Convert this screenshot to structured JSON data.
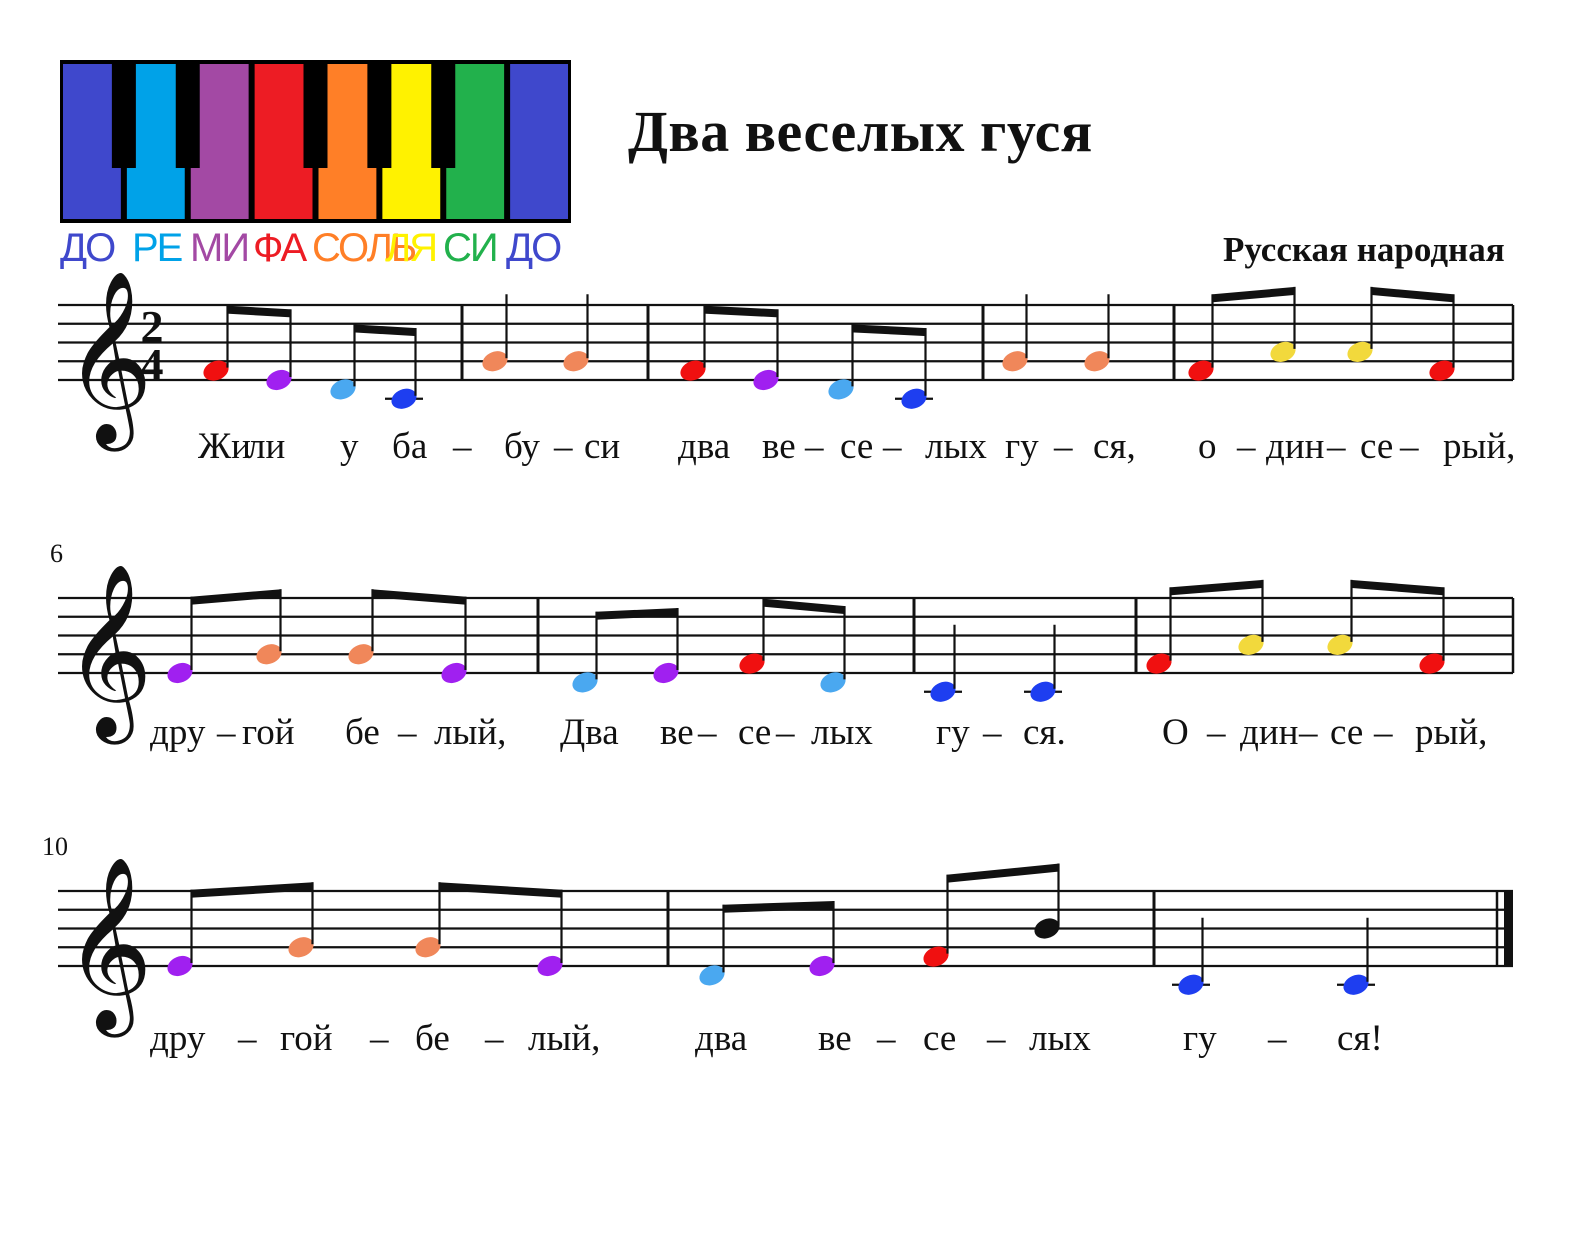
{
  "title": "Два веселых гуся",
  "attribution": "Русская народная",
  "keyboard": {
    "white_key_colors": [
      "#3f48cc",
      "#00a2e8",
      "#a349a4",
      "#ed1c24",
      "#ff7f27",
      "#fff200",
      "#22b14c",
      "#3f48cc"
    ],
    "black_key_color": "#000000",
    "solfege": [
      {
        "label": "ДО",
        "color": "#3f48cc"
      },
      {
        "label": "РЕ",
        "color": "#00a2e8"
      },
      {
        "label": "МИ",
        "color": "#a349a4"
      },
      {
        "label": "ФА",
        "color": "#ed1c24"
      },
      {
        "label": "СОЛЬ",
        "color": "#ff7f27"
      },
      {
        "label": "ЛЯ",
        "color": "#fff200"
      },
      {
        "label": "СИ",
        "color": "#22b14c"
      },
      {
        "label": "ДО",
        "color": "#3f48cc"
      }
    ]
  },
  "time_signature": {
    "top": "2",
    "bottom": "4"
  },
  "note_colors": {
    "C": "#1e3ef0",
    "D": "#4aa8f0",
    "E": "#a020f0",
    "F": "#f01010",
    "G": "#f0875a",
    "A": "#f2d93c",
    "Bb": "#111111"
  },
  "systems": [
    {
      "measure_number": "",
      "notes": [
        "F",
        "E",
        "D",
        "C",
        "G",
        "G",
        "F",
        "E",
        "D",
        "C",
        "G",
        "G",
        "F",
        "A",
        "A",
        "F"
      ],
      "lyrics": [
        "Жи",
        "ли",
        "у",
        "ба",
        "–",
        "бу",
        "–",
        "си",
        "два",
        "ве",
        "–",
        "се",
        "–",
        "лых",
        "гу",
        "–",
        "ся,",
        "о",
        "–",
        "дин",
        "–",
        "се",
        "–",
        "рый,"
      ]
    },
    {
      "measure_number": "6",
      "notes": [
        "E",
        "G",
        "G",
        "E",
        "D",
        "E",
        "F",
        "D",
        "C",
        "C",
        "F",
        "A",
        "A",
        "F"
      ],
      "lyrics": [
        "дру",
        "–",
        "гой",
        "бе",
        "–",
        "лый,",
        "Два",
        "ве",
        "–",
        "се",
        "–",
        "лых",
        "гу",
        "–",
        "ся.",
        "О",
        "–",
        "дин",
        "–",
        "се",
        "–",
        "рый,"
      ]
    },
    {
      "measure_number": "10",
      "notes": [
        "E",
        "G",
        "G",
        "E",
        "D",
        "E",
        "F",
        "Bb",
        "C",
        "C"
      ],
      "lyrics": [
        "дру",
        "–",
        "гой",
        "–",
        "бе",
        "–",
        "лый,",
        "два",
        "ве",
        "–",
        "се",
        "–",
        "лых",
        "гу",
        "–",
        "ся!"
      ]
    }
  ]
}
